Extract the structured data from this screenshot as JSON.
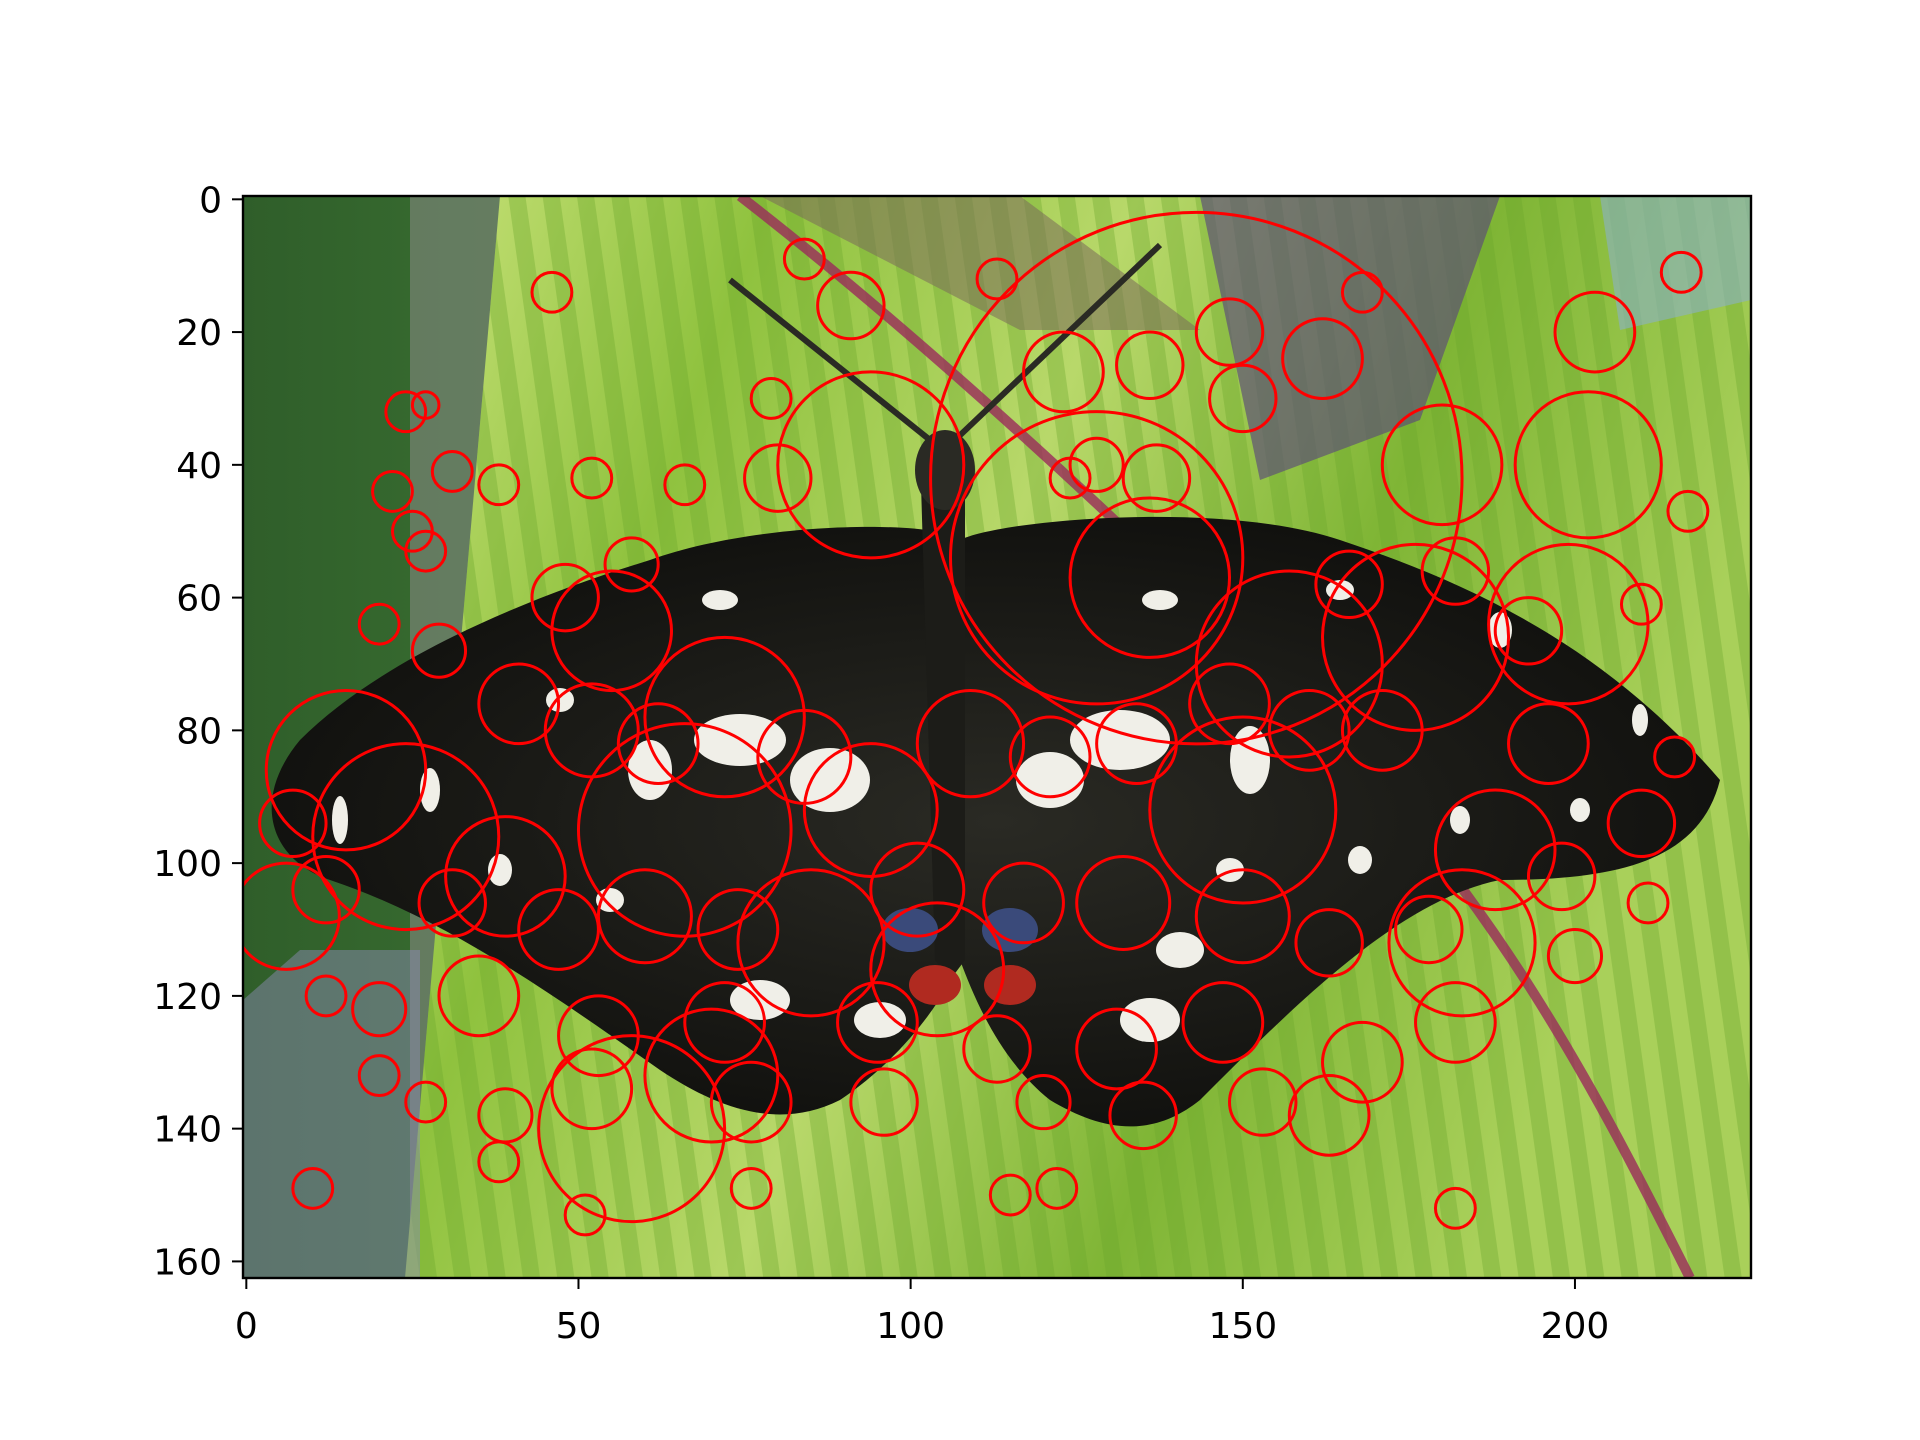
{
  "chart_data": {
    "type": "scatter",
    "title": "",
    "xlabel": "",
    "ylabel": "",
    "xlim": [
      -0.5,
      226.5
    ],
    "ylim": [
      162.5,
      -0.5
    ],
    "y_inverted": true,
    "x_ticks": [
      0,
      50,
      100,
      150,
      200
    ],
    "y_ticks": [
      0,
      20,
      40,
      60,
      80,
      100,
      120,
      140,
      160
    ],
    "x_tick_labels": [
      "0",
      "50",
      "100",
      "150",
      "200"
    ],
    "y_tick_labels": [
      "0",
      "20",
      "40",
      "60",
      "80",
      "100",
      "120",
      "140",
      "160"
    ],
    "grid": false,
    "legend": "none",
    "background_image": "butterfly-on-leaf",
    "marker": "circle-outline",
    "marker_color": "#ff0000",
    "series": [
      {
        "points": [
          [
            143,
            42,
            40
          ],
          [
            94,
            40,
            14
          ],
          [
            128,
            54,
            22
          ],
          [
            157,
            70,
            14
          ],
          [
            136,
            57,
            12
          ],
          [
            55,
            65,
            9
          ],
          [
            72,
            78,
            12
          ],
          [
            15,
            86,
            12
          ],
          [
            24,
            96,
            14
          ],
          [
            39,
            102,
            9
          ],
          [
            66,
            95,
            16
          ],
          [
            85,
            112,
            11
          ],
          [
            94,
            92,
            10
          ],
          [
            150,
            92,
            14
          ],
          [
            183,
            112,
            11
          ],
          [
            176,
            66,
            14
          ],
          [
            188,
            98,
            9
          ],
          [
            199,
            64,
            12
          ],
          [
            202,
            40,
            11
          ],
          [
            180,
            40,
            9
          ],
          [
            91,
            16,
            5
          ],
          [
            46,
            14,
            3
          ],
          [
            84,
            9,
            3
          ],
          [
            113,
            12,
            3
          ],
          [
            148,
            20,
            5
          ],
          [
            162,
            24,
            6
          ],
          [
            168,
            14,
            3
          ],
          [
            203,
            20,
            6
          ],
          [
            216,
            11,
            3
          ],
          [
            24,
            32,
            3
          ],
          [
            27,
            31,
            2
          ],
          [
            79,
            30,
            3
          ],
          [
            123,
            26,
            6
          ],
          [
            136,
            25,
            5
          ],
          [
            150,
            30,
            5
          ],
          [
            137,
            42,
            5
          ],
          [
            128,
            40,
            4
          ],
          [
            124,
            42,
            3
          ],
          [
            80,
            42,
            5
          ],
          [
            52,
            42,
            3
          ],
          [
            66,
            43,
            3
          ],
          [
            22,
            44,
            3
          ],
          [
            31,
            41,
            3
          ],
          [
            38,
            43,
            3
          ],
          [
            25,
            50,
            3
          ],
          [
            27,
            53,
            3
          ],
          [
            48,
            60,
            5
          ],
          [
            58,
            55,
            4
          ],
          [
            166,
            58,
            5
          ],
          [
            182,
            56,
            5
          ],
          [
            193,
            65,
            5
          ],
          [
            210,
            61,
            3
          ],
          [
            217,
            47,
            3
          ],
          [
            20,
            64,
            3
          ],
          [
            29,
            68,
            4
          ],
          [
            41,
            76,
            6
          ],
          [
            52,
            80,
            7
          ],
          [
            62,
            82,
            6
          ],
          [
            84,
            84,
            7
          ],
          [
            109,
            82,
            8
          ],
          [
            121,
            84,
            6
          ],
          [
            134,
            82,
            6
          ],
          [
            148,
            76,
            6
          ],
          [
            160,
            80,
            6
          ],
          [
            171,
            80,
            6
          ],
          [
            196,
            82,
            6
          ],
          [
            215,
            84,
            3
          ],
          [
            12,
            104,
            5
          ],
          [
            7,
            94,
            5
          ],
          [
            31,
            106,
            5
          ],
          [
            47,
            110,
            6
          ],
          [
            60,
            108,
            7
          ],
          [
            74,
            110,
            6
          ],
          [
            101,
            104,
            7
          ],
          [
            117,
            106,
            6
          ],
          [
            132,
            106,
            7
          ],
          [
            150,
            108,
            7
          ],
          [
            163,
            112,
            5
          ],
          [
            178,
            110,
            5
          ],
          [
            198,
            102,
            5
          ],
          [
            210,
            94,
            5
          ],
          [
            12,
            120,
            3
          ],
          [
            20,
            122,
            4
          ],
          [
            35,
            120,
            6
          ],
          [
            53,
            126,
            6
          ],
          [
            72,
            124,
            6
          ],
          [
            95,
            124,
            6
          ],
          [
            113,
            128,
            5
          ],
          [
            131,
            128,
            6
          ],
          [
            147,
            124,
            6
          ],
          [
            168,
            130,
            6
          ],
          [
            182,
            124,
            6
          ],
          [
            20,
            132,
            3
          ],
          [
            27,
            136,
            3
          ],
          [
            39,
            138,
            4
          ],
          [
            38,
            145,
            3
          ],
          [
            52,
            134,
            6
          ],
          [
            76,
            136,
            6
          ],
          [
            96,
            136,
            5
          ],
          [
            120,
            136,
            4
          ],
          [
            135,
            138,
            5
          ],
          [
            153,
            136,
            5
          ],
          [
            163,
            138,
            6
          ],
          [
            10,
            149,
            3
          ],
          [
            51,
            153,
            3
          ],
          [
            76,
            149,
            3
          ],
          [
            115,
            150,
            3
          ],
          [
            122,
            149,
            3
          ],
          [
            182,
            152,
            3
          ],
          [
            211,
            106,
            3
          ],
          [
            200,
            114,
            4
          ],
          [
            6,
            108,
            8
          ],
          [
            58,
            140,
            14
          ],
          [
            104,
            116,
            10
          ],
          [
            70,
            132,
            10
          ]
        ]
      }
    ]
  }
}
